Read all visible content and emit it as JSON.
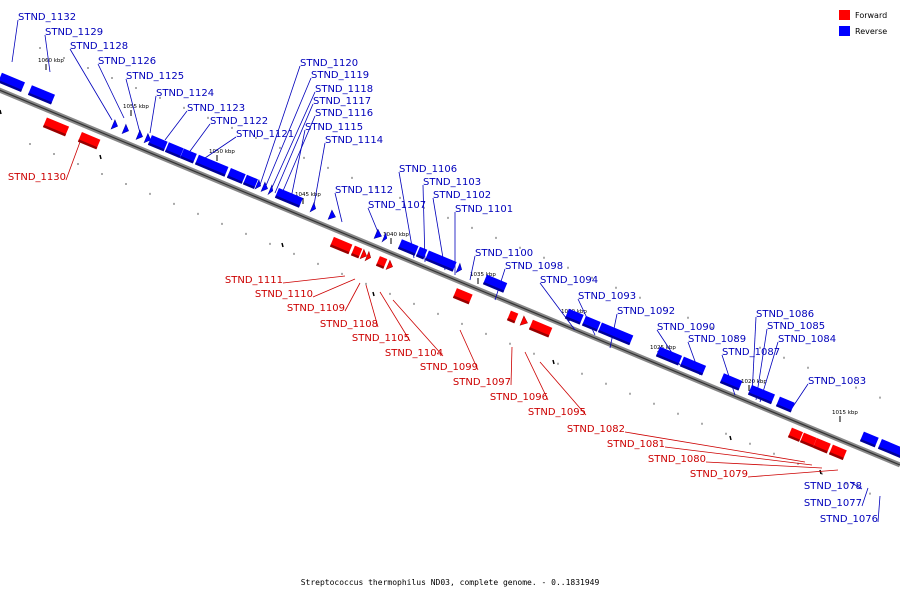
{
  "caption": "Streptococcus thermophilus ND03, complete genome. - 0..1831949",
  "legend": [
    {
      "label": "Forward",
      "color": "#ff0000"
    },
    {
      "label": "Reverse",
      "color": "#0000ff"
    }
  ],
  "kbp_marks": [
    "1060 kbp",
    "1055 kbp",
    "1050 kbp",
    "1045 kbp",
    "1040 kbp",
    "1035 kbp",
    "1030 kbp",
    "1025 kbp",
    "1020 kbp",
    "1015 kbp"
  ],
  "reverse_genes": [
    "STND_1132",
    "STND_1129",
    "STND_1128",
    "STND_1126",
    "STND_1125",
    "STND_1124",
    "STND_1123",
    "STND_1122",
    "STND_1121",
    "STND_1120",
    "STND_1119",
    "STND_1118",
    "STND_1117",
    "STND_1116",
    "STND_1115",
    "STND_1114",
    "STND_1112",
    "STND_1107",
    "STND_1106",
    "STND_1103",
    "STND_1102",
    "STND_1101",
    "STND_1100",
    "STND_1098",
    "STND_1094",
    "STND_1093",
    "STND_1092",
    "STND_1090",
    "STND_1089",
    "STND_1087",
    "STND_1086",
    "STND_1085",
    "STND_1084",
    "STND_1083",
    "STND_1078",
    "STND_1077",
    "STND_1076"
  ],
  "forward_genes": [
    "STND_1130",
    "STND_1111",
    "STND_1110",
    "STND_1109",
    "STND_1108",
    "STND_1105",
    "STND_1104",
    "STND_1099",
    "STND_1097",
    "STND_1096",
    "STND_1095",
    "STND_1082",
    "STND_1081",
    "STND_1080",
    "STND_1079"
  ]
}
